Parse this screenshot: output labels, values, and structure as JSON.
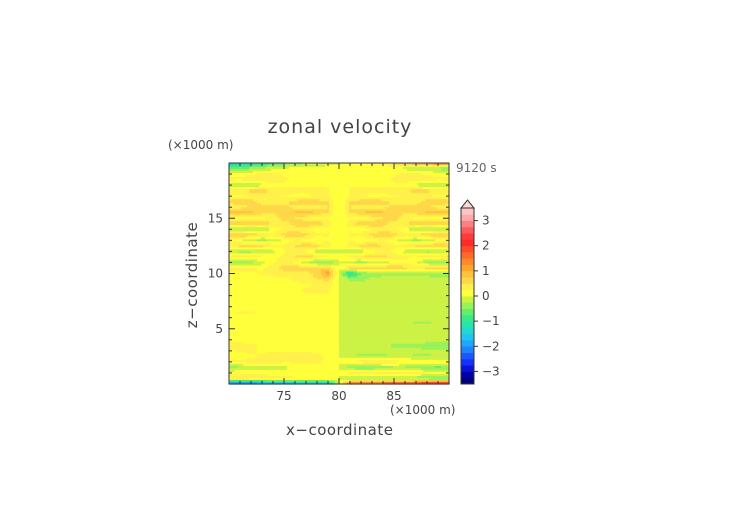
{
  "chart_data": {
    "type": "heatmap",
    "title": "zonal velocity",
    "annotation": "9120 s",
    "xlabel": "x−coordinate",
    "ylabel": "z−coordinate",
    "x_unit": "(×1000 m)",
    "y_unit": "(×1000 m)",
    "xlim": [
      70,
      90
    ],
    "ylim": [
      0,
      20
    ],
    "xticks": [
      75,
      80,
      85
    ],
    "yticks": [
      5,
      10,
      15
    ],
    "xtick_labels": [
      "75",
      "80",
      "85"
    ],
    "ytick_labels": [
      "5",
      "10",
      "15"
    ],
    "colorbar": {
      "levels": [
        -3.5,
        -3.25,
        -3,
        -2.75,
        -2.5,
        -2.25,
        -2,
        -1.75,
        -1.5,
        -1.25,
        -1,
        -0.75,
        -0.5,
        -0.25,
        0,
        0.25,
        0.5,
        0.75,
        1,
        1.25,
        1.5,
        1.75,
        2,
        2.25,
        2.5,
        2.75,
        3,
        3.25,
        3.5
      ],
      "colors": [
        "#00007a",
        "#0000a6",
        "#0a14d0",
        "#1432ff",
        "#1b58ff",
        "#1f82ff",
        "#1fa6ff",
        "#20c4f2",
        "#22d9d2",
        "#27e3ad",
        "#38e88a",
        "#63ee6a",
        "#9af25a",
        "#cbf244",
        "#ffff3c",
        "#fff04a",
        "#ffd84a",
        "#ffc23a",
        "#ffa52c",
        "#ff8a2a",
        "#ff6a2a",
        "#ff4a2c",
        "#ff2a2a",
        "#ff3a3a",
        "#ff5a5a",
        "#ff8080",
        "#ffa8a8",
        "#ffc4c4"
      ],
      "tick_values": [
        3,
        2,
        1,
        0,
        -1,
        -2,
        -3
      ],
      "tick_labels": [
        "3",
        "2",
        "1",
        "0",
        "−1",
        "−2",
        "−3"
      ],
      "extend": "max"
    },
    "field": {
      "description_values": "zonal velocity (m/s) sampled on a grid over x=70..90, z=0..20",
      "x": [
        70,
        71,
        72,
        73,
        74,
        75,
        76,
        77,
        78,
        79,
        80,
        81,
        82,
        83,
        84,
        85,
        86,
        87,
        88,
        89,
        90
      ],
      "z": [
        0,
        0.5,
        1,
        1.5,
        2,
        2.5,
        3,
        3.5,
        4,
        4.5,
        5,
        5.5,
        6,
        6.5,
        7,
        7.5,
        8,
        8.5,
        9,
        9.5,
        10,
        10.5,
        11,
        11.5,
        12,
        12.5,
        13,
        13.5,
        14,
        14.5,
        15,
        15.5,
        16,
        16.5,
        17,
        17.5,
        18,
        18.5,
        19,
        19.5,
        20
      ],
      "values": [
        [
          -2.5,
          -2.4,
          -2.3,
          -2.2,
          -2.1,
          -2.0,
          -1.9,
          -1.8,
          -1.7,
          -1.6,
          0.0,
          1.6,
          1.7,
          1.8,
          1.9,
          2.0,
          2.1,
          2.2,
          2.3,
          2.4,
          2.5
        ],
        [
          0.6,
          0.55,
          0.5,
          0.45,
          0.4,
          0.35,
          0.3,
          0.3,
          0.3,
          0.3,
          0.0,
          -0.3,
          -0.3,
          -0.3,
          -0.3,
          -0.35,
          -0.4,
          -0.45,
          -0.5,
          -0.55,
          -0.6
        ],
        [
          0.2,
          0.2,
          0.2,
          0.15,
          0.15,
          0.1,
          0.1,
          0.1,
          0.1,
          0.1,
          0.0,
          0.25,
          0.3,
          0.35,
          0.4,
          0.4,
          0.3,
          0.3,
          0.25,
          0.2,
          0.2
        ],
        [
          -0.4,
          -0.3,
          -0.2,
          -0.2,
          -0.1,
          -0.1,
          0.1,
          0.2,
          0.2,
          0.2,
          0.0,
          -0.4,
          -0.5,
          -0.5,
          -0.4,
          -0.3,
          -0.3,
          -0.4,
          -0.5,
          -0.6,
          -0.5
        ],
        [
          0.3,
          0.3,
          0.4,
          0.4,
          0.4,
          0.3,
          0.3,
          0.3,
          0.3,
          0.2,
          0.0,
          0.3,
          0.4,
          0.5,
          0.5,
          0.4,
          0.3,
          0.3,
          0.3,
          0.2,
          0.2
        ],
        [
          0.1,
          0.1,
          0.2,
          0.3,
          0.4,
          0.5,
          0.5,
          0.4,
          0.3,
          0.2,
          0.0,
          -0.2,
          -0.3,
          -0.3,
          -0.3,
          -0.2,
          -0.2,
          -0.3,
          -0.3,
          -0.2,
          -0.2
        ],
        [
          0.2,
          0.3,
          0.3,
          0.2,
          0.2,
          0.2,
          0.2,
          0.2,
          0.2,
          0.2,
          0.0,
          -0.2,
          -0.2,
          -0.2,
          -0.2,
          -0.2,
          -0.2,
          -0.2,
          -0.2,
          -0.2,
          -0.2
        ],
        [
          0.5,
          0.4,
          0.3,
          0.2,
          0.2,
          0.2,
          0.1,
          0.1,
          0.1,
          0.1,
          0.0,
          -0.1,
          -0.2,
          -0.2,
          -0.2,
          -0.3,
          -0.3,
          -0.3,
          -0.4,
          -0.4,
          -0.4
        ],
        [
          0.1,
          0.1,
          0.1,
          0.1,
          0.1,
          0.1,
          0.1,
          0.1,
          0.1,
          0.1,
          0.0,
          -0.1,
          -0.1,
          -0.1,
          -0.1,
          -0.1,
          -0.1,
          -0.1,
          -0.1,
          -0.1,
          -0.1
        ],
        [
          0.2,
          0.2,
          0.2,
          0.2,
          0.2,
          0.2,
          0.2,
          0.2,
          0.2,
          0.2,
          0.0,
          -0.2,
          -0.2,
          -0.2,
          -0.2,
          -0.2,
          -0.2,
          -0.2,
          -0.2,
          -0.2,
          -0.2
        ],
        [
          0.1,
          0.1,
          0.1,
          0.1,
          0.1,
          0.1,
          0.1,
          0.1,
          0.1,
          0.1,
          0.0,
          -0.1,
          -0.1,
          -0.1,
          -0.1,
          -0.1,
          -0.1,
          -0.1,
          -0.1,
          -0.1,
          -0.1
        ],
        [
          0.2,
          0.2,
          0.2,
          0.2,
          0.2,
          0.2,
          0.2,
          0.2,
          0.2,
          0.2,
          0.0,
          -0.1,
          -0.1,
          -0.1,
          -0.2,
          -0.2,
          -0.2,
          -0.3,
          -0.3,
          -0.2,
          -0.2
        ],
        [
          0.1,
          0.1,
          0.1,
          0.1,
          0.1,
          0.1,
          0.1,
          0.1,
          0.1,
          0.1,
          0.0,
          -0.1,
          -0.1,
          -0.1,
          -0.1,
          -0.1,
          -0.1,
          -0.1,
          -0.1,
          -0.1,
          -0.1
        ],
        [
          0.2,
          0.3,
          0.3,
          0.2,
          0.1,
          0.1,
          0.1,
          0.1,
          0.1,
          0.1,
          0.0,
          -0.1,
          -0.1,
          -0.1,
          -0.1,
          -0.1,
          -0.1,
          -0.1,
          -0.1,
          -0.1,
          -0.1
        ],
        [
          0.1,
          0.1,
          0.1,
          0.1,
          0.1,
          0.1,
          0.1,
          0.1,
          0.1,
          0.1,
          0.0,
          -0.1,
          -0.1,
          -0.1,
          -0.1,
          -0.1,
          -0.1,
          -0.1,
          -0.1,
          -0.1,
          -0.1
        ],
        [
          0.1,
          0.1,
          0.1,
          0.1,
          0.1,
          0.1,
          0.1,
          0.1,
          0.2,
          0.2,
          0.0,
          -0.1,
          -0.1,
          -0.1,
          -0.1,
          -0.1,
          -0.1,
          -0.1,
          -0.1,
          -0.1,
          -0.1
        ],
        [
          0.2,
          0.2,
          0.2,
          0.2,
          0.2,
          0.2,
          0.2,
          0.2,
          0.2,
          0.2,
          0.0,
          -0.1,
          -0.2,
          -0.2,
          -0.2,
          -0.2,
          -0.2,
          -0.2,
          -0.2,
          -0.1,
          -0.1
        ],
        [
          0.1,
          0.1,
          0.1,
          0.1,
          0.1,
          0.2,
          0.2,
          0.3,
          0.3,
          0.3,
          0.0,
          -0.1,
          -0.1,
          -0.1,
          -0.1,
          -0.1,
          -0.1,
          -0.1,
          -0.1,
          -0.1,
          -0.1
        ],
        [
          0.1,
          0.1,
          0.1,
          0.1,
          0.1,
          0.1,
          0.2,
          0.2,
          0.3,
          0.4,
          0.0,
          -0.2,
          -0.2,
          -0.2,
          -0.2,
          -0.2,
          -0.2,
          -0.1,
          -0.1,
          -0.1,
          -0.1
        ],
        [
          0.2,
          0.2,
          0.1,
          0.1,
          0.1,
          0.2,
          0.3,
          0.4,
          0.5,
          0.6,
          0.0,
          -0.3,
          -0.3,
          -0.2,
          -0.2,
          -0.2,
          -0.2,
          -0.2,
          -0.2,
          -0.2,
          -0.2
        ],
        [
          0.1,
          0.2,
          0.2,
          0.3,
          0.4,
          0.4,
          0.3,
          0.4,
          0.6,
          1.2,
          0.0,
          -1.3,
          -0.5,
          -0.4,
          -0.3,
          -0.3,
          -0.3,
          -0.3,
          -0.3,
          -0.4,
          -0.4
        ],
        [
          0.4,
          0.4,
          0.3,
          0.2,
          0.4,
          0.6,
          0.7,
          0.6,
          0.7,
          0.6,
          0.0,
          0.7,
          0.7,
          0.6,
          0.7,
          0.7,
          0.6,
          0.5,
          0.6,
          0.6,
          0.7
        ],
        [
          -0.4,
          -0.5,
          -0.3,
          -0.1,
          0.2,
          0.4,
          0.2,
          -0.2,
          -0.4,
          -0.4,
          0.0,
          -0.2,
          -0.3,
          -0.2,
          -0.1,
          0.1,
          0.2,
          0.0,
          -0.3,
          -0.5,
          -0.5
        ],
        [
          0.3,
          0.4,
          0.4,
          0.3,
          0.2,
          0.3,
          0.5,
          0.7,
          0.5,
          0.3,
          0.0,
          0.4,
          0.5,
          0.7,
          0.6,
          0.4,
          0.3,
          0.3,
          0.4,
          0.5,
          0.6
        ],
        [
          -0.3,
          -0.4,
          -0.4,
          -0.3,
          -0.1,
          0.2,
          0.4,
          0.2,
          -0.2,
          -0.3,
          0.0,
          -0.3,
          -0.2,
          0.1,
          0.3,
          0.2,
          -0.1,
          -0.3,
          -0.4,
          -0.4,
          -0.4
        ],
        [
          0.5,
          0.6,
          0.7,
          0.6,
          0.4,
          0.3,
          0.5,
          0.7,
          0.6,
          0.4,
          0.0,
          0.4,
          0.6,
          0.7,
          0.5,
          0.3,
          0.4,
          0.6,
          0.7,
          0.7,
          0.6
        ],
        [
          0.2,
          0.1,
          -0.2,
          -0.3,
          -0.2,
          0.1,
          0.3,
          0.2,
          0.0,
          0.2,
          0.0,
          0.2,
          0.0,
          0.2,
          0.3,
          0.1,
          -0.2,
          -0.3,
          -0.2,
          0.1,
          0.2
        ],
        [
          0.7,
          0.8,
          0.7,
          0.5,
          0.4,
          0.6,
          0.8,
          0.6,
          0.3,
          0.3,
          0.0,
          0.3,
          0.3,
          0.6,
          0.8,
          0.6,
          0.4,
          0.5,
          0.7,
          0.8,
          0.7
        ],
        [
          -0.2,
          -0.3,
          -0.4,
          -0.3,
          0.0,
          0.3,
          0.4,
          0.2,
          0.1,
          0.2,
          0.0,
          0.2,
          0.1,
          0.2,
          0.4,
          0.3,
          0.0,
          -0.3,
          -0.4,
          -0.3,
          -0.2
        ],
        [
          0.6,
          0.7,
          0.8,
          0.7,
          0.5,
          0.4,
          0.6,
          0.8,
          0.7,
          0.4,
          0.0,
          0.4,
          0.7,
          0.8,
          0.6,
          0.4,
          0.5,
          0.7,
          0.8,
          0.7,
          0.6
        ],
        [
          0.3,
          0.2,
          0.1,
          0.2,
          0.4,
          0.6,
          0.5,
          0.3,
          0.2,
          0.2,
          0.0,
          0.2,
          0.2,
          0.3,
          0.5,
          0.6,
          0.4,
          0.2,
          0.1,
          0.2,
          0.3
        ],
        [
          0.8,
          0.9,
          0.8,
          0.6,
          0.5,
          0.6,
          0.8,
          0.9,
          0.7,
          0.5,
          0.0,
          0.5,
          0.7,
          0.9,
          0.8,
          0.6,
          0.5,
          0.6,
          0.8,
          0.9,
          0.8
        ],
        [
          0.3,
          0.4,
          0.5,
          0.6,
          0.7,
          0.6,
          0.4,
          0.3,
          0.4,
          0.5,
          0.0,
          0.5,
          0.4,
          0.3,
          0.4,
          0.6,
          0.7,
          0.6,
          0.5,
          0.4,
          0.3
        ],
        [
          0.6,
          0.7,
          0.6,
          0.4,
          0.3,
          0.4,
          0.6,
          0.7,
          0.6,
          0.5,
          0.0,
          0.5,
          0.6,
          0.7,
          0.6,
          0.4,
          0.3,
          0.4,
          0.6,
          0.7,
          0.6
        ],
        [
          0.2,
          0.2,
          0.3,
          0.4,
          0.3,
          0.2,
          0.2,
          0.2,
          0.3,
          0.3,
          0.0,
          0.3,
          0.3,
          0.2,
          0.2,
          0.2,
          0.3,
          0.4,
          0.3,
          0.2,
          0.2
        ],
        [
          0.4,
          0.5,
          0.6,
          0.6,
          0.5,
          0.4,
          0.3,
          0.3,
          0.3,
          0.3,
          0.0,
          0.3,
          0.3,
          0.3,
          0.3,
          0.4,
          0.5,
          0.6,
          0.6,
          0.5,
          0.4
        ],
        [
          -0.2,
          -0.3,
          -0.2,
          -0.1,
          0.1,
          0.2,
          0.2,
          0.2,
          0.2,
          0.2,
          0.0,
          0.2,
          0.2,
          0.2,
          0.2,
          0.2,
          0.1,
          -0.1,
          -0.2,
          -0.3,
          -0.2
        ],
        [
          0.3,
          0.3,
          0.4,
          0.5,
          0.4,
          0.3,
          0.2,
          0.2,
          0.2,
          0.2,
          0.0,
          0.2,
          0.2,
          0.2,
          0.2,
          0.3,
          0.4,
          0.5,
          0.4,
          0.3,
          0.3
        ],
        [
          0.2,
          0.2,
          0.2,
          0.3,
          0.3,
          0.2,
          0.2,
          0.2,
          0.2,
          0.2,
          0.0,
          0.2,
          0.2,
          0.2,
          0.2,
          0.2,
          0.3,
          0.3,
          0.2,
          0.2,
          0.2
        ],
        [
          -0.6,
          -0.5,
          -0.4,
          -0.2,
          -0.1,
          0.0,
          0.1,
          0.1,
          0.1,
          0.1,
          0.0,
          0.1,
          0.1,
          0.1,
          0.1,
          0.0,
          -0.1,
          -0.2,
          -0.3,
          -0.4,
          -0.5
        ],
        [
          -1.6,
          -1.4,
          -1.2,
          -1.0,
          -0.8,
          -0.6,
          -0.4,
          -0.3,
          -0.2,
          -0.1,
          0.0,
          0.1,
          0.2,
          0.3,
          0.4,
          0.6,
          0.8,
          1.0,
          1.2,
          1.4,
          1.6
        ]
      ]
    }
  }
}
